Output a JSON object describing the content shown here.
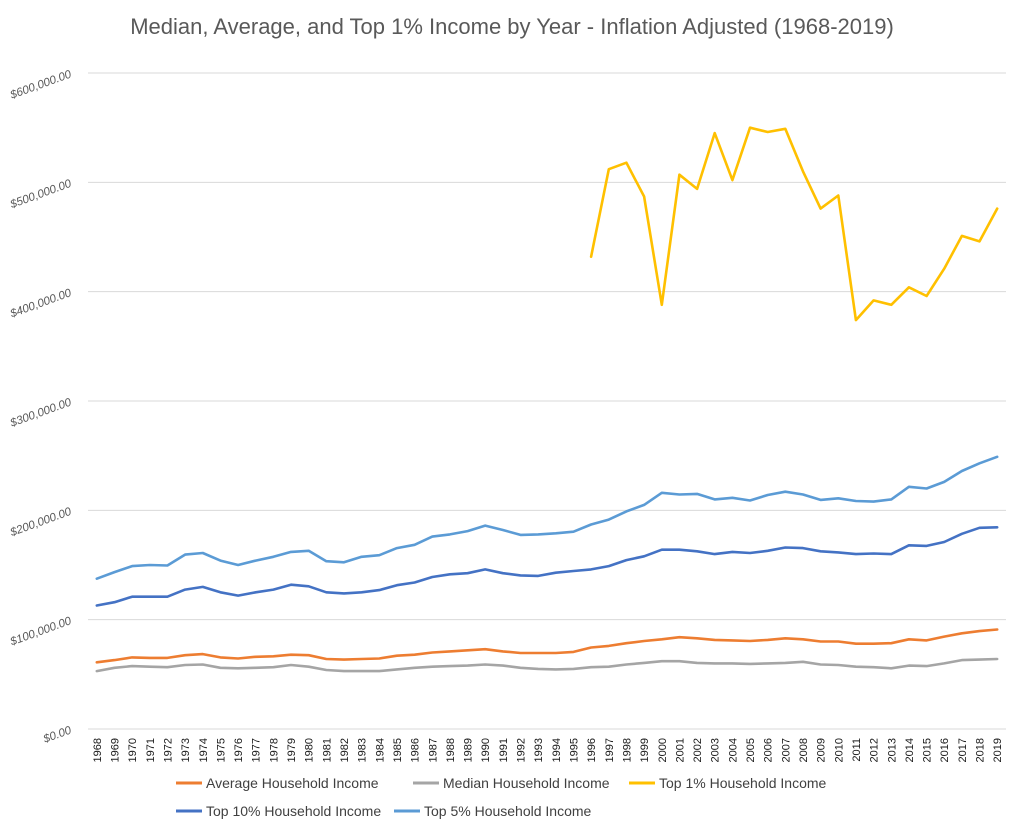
{
  "chart_data": {
    "type": "line",
    "title": "Median, Average, and Top 1% Income by Year - Inflation Adjusted (1968-2019)",
    "xlabel": "",
    "ylabel": "",
    "ylim": [
      0,
      600000
    ],
    "y_ticks": [
      "$0.00",
      "$100,000.00",
      "$200,000.00",
      "$300,000.00",
      "$400,000.00",
      "$500,000.00",
      "$600,000.00"
    ],
    "y_tick_values": [
      0,
      100000,
      200000,
      300000,
      400000,
      500000,
      600000
    ],
    "grid": true,
    "legend_position": "bottom",
    "categories": [
      "1968",
      "1969",
      "1970",
      "1971",
      "1972",
      "1973",
      "1974",
      "1975",
      "1976",
      "1977",
      "1978",
      "1979",
      "1980",
      "1981",
      "1982",
      "1983",
      "1984",
      "1985",
      "1986",
      "1987",
      "1988",
      "1989",
      "1990",
      "1991",
      "1992",
      "1993",
      "1994",
      "1995",
      "1996",
      "1997",
      "1998",
      "1999",
      "2000",
      "2001",
      "2002",
      "2003",
      "2004",
      "2005",
      "2006",
      "2007",
      "2008",
      "2009",
      "2010",
      "2011",
      "2012",
      "2013",
      "2014",
      "2015",
      "2016",
      "2017",
      "2018",
      "2019"
    ],
    "series": [
      {
        "name": "Average Household Income",
        "color": "#ED7D31",
        "values": [
          61000,
          63000,
          65500,
          65000,
          65000,
          67500,
          68500,
          65500,
          64500,
          66000,
          66500,
          68000,
          67500,
          64000,
          63500,
          64000,
          64500,
          67000,
          68000,
          70000,
          71000,
          72000,
          73000,
          71000,
          69500,
          69500,
          69500,
          70500,
          74500,
          76000,
          78500,
          80500,
          82000,
          84000,
          83000,
          81500,
          81000,
          80500,
          81500,
          83000,
          82000,
          80000,
          80000,
          78000,
          78000,
          78500,
          82000,
          81000,
          84500,
          87500,
          89500,
          91000
        ]
      },
      {
        "name": "Median Household Income",
        "color": "#A5A5A5",
        "values": [
          53000,
          56000,
          57500,
          57000,
          56500,
          58500,
          59000,
          56000,
          55500,
          56000,
          56500,
          58500,
          57000,
          54000,
          53000,
          53000,
          53000,
          54500,
          56000,
          57000,
          57500,
          58000,
          59000,
          58000,
          56000,
          55000,
          54500,
          55000,
          56500,
          57000,
          59000,
          60500,
          62000,
          62000,
          60500,
          60000,
          60000,
          59500,
          60000,
          60500,
          61500,
          59000,
          58500,
          57000,
          56500,
          55500,
          58000,
          57500,
          60000,
          63000,
          63500,
          64000
        ]
      },
      {
        "name": "Top 1% Household Income",
        "color": "#FFC000",
        "values": [
          null,
          null,
          null,
          null,
          null,
          null,
          null,
          null,
          null,
          null,
          null,
          null,
          null,
          null,
          null,
          null,
          null,
          null,
          null,
          null,
          null,
          null,
          null,
          null,
          null,
          null,
          null,
          null,
          432000,
          512000,
          518000,
          487000,
          388000,
          507000,
          494000,
          545000,
          502000,
          550000,
          546000,
          549000,
          510000,
          476000,
          488000,
          374000,
          392000,
          388000,
          404000,
          396000,
          421000,
          451000,
          446000,
          476000
        ]
      },
      {
        "name": "Top 10% Household Income",
        "color": "#4472C4",
        "values": [
          113000,
          116000,
          121000,
          121000,
          121000,
          127500,
          130000,
          125000,
          122000,
          125000,
          127500,
          132000,
          130500,
          125000,
          124000,
          125000,
          127000,
          131500,
          134000,
          139000,
          141500,
          142500,
          146000,
          142500,
          140500,
          140000,
          143000,
          144500,
          146000,
          149000,
          154500,
          158000,
          164000,
          164000,
          162500,
          160000,
          162000,
          161000,
          163000,
          166000,
          165500,
          162500,
          161500,
          160000,
          160500,
          160000,
          168000,
          167500,
          171000,
          178500,
          184000,
          184500
        ]
      },
      {
        "name": "Top 5% Household Income",
        "color": "#5B9BD5",
        "values": [
          137500,
          143500,
          149000,
          150000,
          149500,
          159500,
          161000,
          154000,
          150000,
          154000,
          157500,
          162000,
          163000,
          153500,
          152500,
          157500,
          159000,
          165500,
          168500,
          176000,
          178000,
          181000,
          186000,
          182000,
          177500,
          178000,
          179000,
          180500,
          187000,
          191500,
          199000,
          205000,
          216000,
          214500,
          215000,
          210000,
          211500,
          209000,
          214000,
          217000,
          214500,
          209500,
          211000,
          208500,
          208000,
          210000,
          221500,
          220000,
          226000,
          236000,
          243000,
          249000
        ]
      }
    ]
  }
}
